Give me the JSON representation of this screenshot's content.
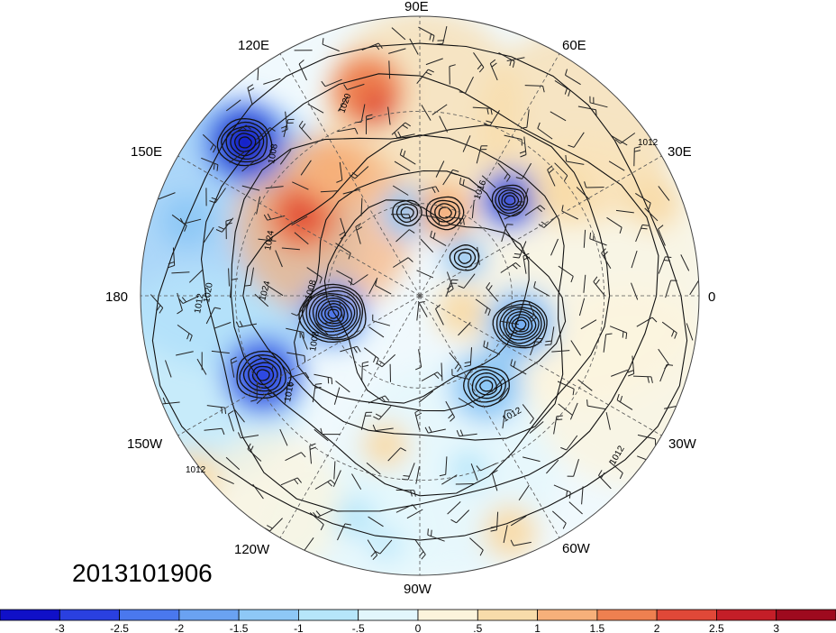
{
  "timestamp": "2013101906",
  "longitude_labels": [
    "90E",
    "60E",
    "30E",
    "0",
    "30W",
    "60W",
    "90W",
    "120W",
    "150W",
    "180",
    "150E",
    "120E"
  ],
  "contour_labels": [
    "1020",
    "1008",
    "1024",
    "1020",
    "1024",
    "1012",
    "1008",
    "1016",
    "1012",
    "1012",
    "1012",
    "1012",
    "1016",
    "1008"
  ],
  "colorbar": {
    "colors": [
      "#1010c8",
      "#2a40e0",
      "#4a78ee",
      "#6aa2f2",
      "#8ec8f6",
      "#b6e6fa",
      "#e2f6fc",
      "#fcf4dc",
      "#f8dcaa",
      "#f6b07a",
      "#ee8050",
      "#e04838",
      "#c41e28",
      "#9e0a1e"
    ],
    "tick_labels": [
      "-3",
      "-2.5",
      "-2",
      "-1.5",
      "-1",
      "-.5",
      "0",
      ".5",
      "1",
      "1.5",
      "2",
      "2.5",
      "3"
    ]
  },
  "anomaly_centers": [
    {
      "name": "low-150E",
      "value": -3.2
    },
    {
      "name": "low-170W",
      "value": -3.0
    },
    {
      "name": "low-160E-south",
      "value": -2.0
    },
    {
      "name": "low-80E",
      "value": -1.8
    },
    {
      "name": "low-50E",
      "value": -3.2
    },
    {
      "name": "low-30E-inner",
      "value": -1.8
    },
    {
      "name": "low-0-ring",
      "value": -1.6
    },
    {
      "name": "low-45W",
      "value": -1.7
    },
    {
      "name": "low-center",
      "value": -2.6
    },
    {
      "name": "high-110E",
      "value": 2.3
    },
    {
      "name": "high-120E",
      "value": 2.3
    },
    {
      "name": "high-75E",
      "value": 1.9
    },
    {
      "name": "high-130E-north",
      "value": 2.0
    },
    {
      "name": "high-35E",
      "value": 1.1
    },
    {
      "name": "high-30E-far",
      "value": 1.2
    },
    {
      "name": "high-centerright",
      "value": 1.3
    },
    {
      "name": "high-120W",
      "value": 1.1
    },
    {
      "name": "high-150W-edge",
      "value": 0.8
    },
    {
      "name": "high-60W-ocean",
      "value": 0.9
    },
    {
      "name": "low-70W-small",
      "value": -1.2
    },
    {
      "name": "low-130W",
      "value": -1.0
    },
    {
      "name": "low-40W-small",
      "value": -0.9
    }
  ]
}
